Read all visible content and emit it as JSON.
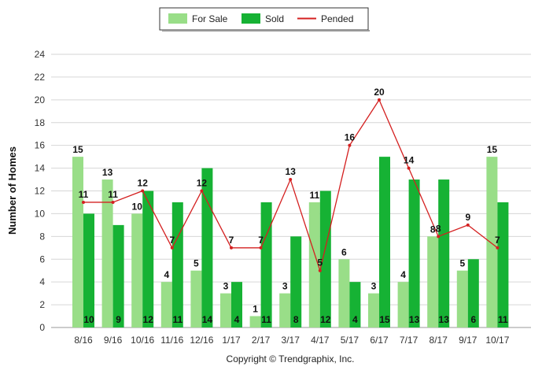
{
  "chart_data": {
    "type": "bar",
    "categories": [
      "8/16",
      "9/16",
      "10/16",
      "11/16",
      "12/16",
      "1/17",
      "2/17",
      "3/17",
      "4/17",
      "5/17",
      "6/17",
      "7/17",
      "8/17",
      "9/17",
      "10/17"
    ],
    "series": [
      {
        "name": "For Sale",
        "kind": "bar",
        "color": "#99de88",
        "values": [
          15,
          13,
          10,
          4,
          5,
          3,
          1,
          3,
          11,
          6,
          3,
          4,
          8,
          5,
          15
        ]
      },
      {
        "name": "Sold",
        "kind": "bar",
        "color": "#16b234",
        "values": [
          10,
          9,
          12,
          11,
          14,
          4,
          11,
          8,
          12,
          4,
          15,
          13,
          13,
          6,
          11
        ]
      },
      {
        "name": "Pended",
        "kind": "line",
        "color": "#d42020",
        "values": [
          11,
          11,
          12,
          7,
          12,
          7,
          7,
          13,
          5,
          16,
          20,
          14,
          8,
          9,
          7
        ]
      }
    ],
    "ylabel": "Number of Homes",
    "xlabel": "",
    "ylim": [
      0,
      24
    ],
    "yticks": [
      0,
      2,
      4,
      6,
      8,
      10,
      12,
      14,
      16,
      18,
      20,
      22,
      24
    ],
    "grid": true,
    "legend": "top-center"
  },
  "copyright": "Copyright © Trendgraphix, Inc."
}
